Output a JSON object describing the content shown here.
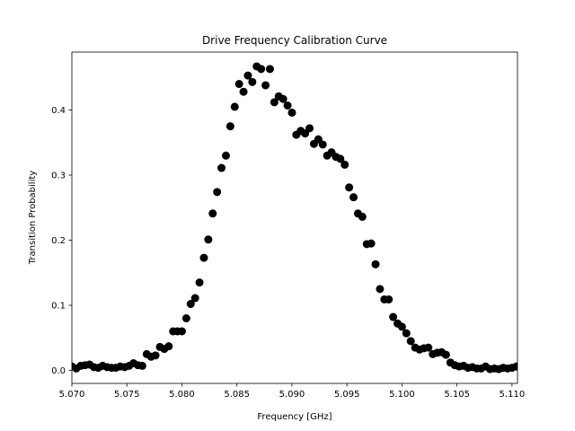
{
  "chart_data": {
    "type": "scatter",
    "title": "Drive Frequency Calibration Curve",
    "xlabel": "Frequency [GHz]",
    "ylabel": "Transition Probability",
    "xlim": [
      5.07,
      5.1105
    ],
    "ylim": [
      -0.02,
      0.489
    ],
    "x_ticks": [
      5.07,
      5.075,
      5.08,
      5.085,
      5.09,
      5.095,
      5.1,
      5.105,
      5.11
    ],
    "x_tick_labels": [
      "5.070",
      "5.075",
      "5.080",
      "5.085",
      "5.090",
      "5.095",
      "5.100",
      "5.105",
      "5.110"
    ],
    "y_ticks": [
      0.0,
      0.1,
      0.2,
      0.3,
      0.4
    ],
    "y_tick_labels": [
      "0.0",
      "0.1",
      "0.2",
      "0.3",
      "0.4"
    ],
    "grid": false,
    "marker_color": "#000000",
    "series": [
      {
        "x": [
          5.07,
          5.0704,
          5.0708,
          5.0712,
          5.0716,
          5.072,
          5.0724,
          5.0728,
          5.0732,
          5.0736,
          5.074,
          5.0744,
          5.0748,
          5.0752,
          5.0756,
          5.076,
          5.0764,
          5.0768,
          5.0772,
          5.0776,
          5.078,
          5.0784,
          5.0788,
          5.0792,
          5.0796,
          5.08,
          5.0804,
          5.0808,
          5.0812,
          5.0816,
          5.082,
          5.0824,
          5.0828,
          5.0832,
          5.0836,
          5.084,
          5.0844,
          5.0848,
          5.0852,
          5.0856,
          5.086,
          5.0864,
          5.0868,
          5.0872,
          5.0876,
          5.088,
          5.0884,
          5.0888,
          5.0892,
          5.0896,
          5.09,
          5.0904,
          5.0908,
          5.0912,
          5.0916,
          5.092,
          5.0924,
          5.0928,
          5.0932,
          5.0936,
          5.094,
          5.0944,
          5.0948,
          5.0952,
          5.0956,
          5.096,
          5.0964,
          5.0968,
          5.0972,
          5.0976,
          5.098,
          5.0984,
          5.0988,
          5.0992,
          5.0996,
          5.1,
          5.1004,
          5.1008,
          5.1012,
          5.1016,
          5.102,
          5.1024,
          5.1028,
          5.1032,
          5.1036,
          5.104,
          5.1044,
          5.1048,
          5.1052,
          5.1056,
          5.106,
          5.1064,
          5.1068,
          5.1072,
          5.1076,
          5.108,
          5.1084,
          5.1088,
          5.1092,
          5.1096,
          5.11,
          5.1104
        ],
        "y": [
          0.006,
          0.003,
          0.007,
          0.008,
          0.009,
          0.005,
          0.004,
          0.007,
          0.005,
          0.004,
          0.004,
          0.006,
          0.005,
          0.007,
          0.011,
          0.008,
          0.007,
          0.025,
          0.021,
          0.023,
          0.036,
          0.033,
          0.037,
          0.06,
          0.06,
          0.06,
          0.08,
          0.102,
          0.111,
          0.135,
          0.173,
          0.201,
          0.241,
          0.274,
          0.311,
          0.33,
          0.375,
          0.405,
          0.44,
          0.428,
          0.453,
          0.443,
          0.467,
          0.463,
          0.438,
          0.463,
          0.412,
          0.421,
          0.417,
          0.407,
          0.396,
          0.362,
          0.368,
          0.364,
          0.372,
          0.348,
          0.355,
          0.347,
          0.33,
          0.335,
          0.328,
          0.325,
          0.316,
          0.281,
          0.266,
          0.241,
          0.236,
          0.194,
          0.195,
          0.163,
          0.125,
          0.109,
          0.109,
          0.082,
          0.072,
          0.067,
          0.057,
          0.045,
          0.035,
          0.032,
          0.034,
          0.035,
          0.025,
          0.027,
          0.028,
          0.024,
          0.012,
          0.008,
          0.006,
          0.007,
          0.004,
          0.005,
          0.003,
          0.003,
          0.006,
          0.002,
          0.003,
          0.002,
          0.004,
          0.003,
          0.004,
          0.006
        ]
      }
    ]
  }
}
